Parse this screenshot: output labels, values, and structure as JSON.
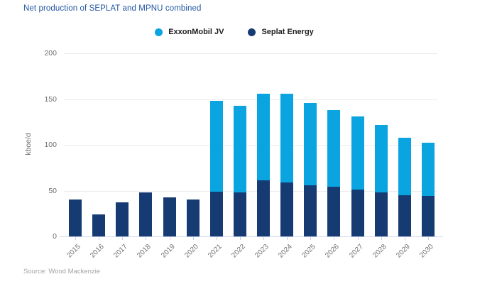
{
  "title": "Net production of SEPLAT and MPNU combined",
  "source": "Source: Wood Mackenzie",
  "colors": {
    "exxonmobil_jv": "#0aa5e0",
    "seplat_energy": "#163a72",
    "title_text": "#2456a3",
    "axis_text": "#6e6e6e",
    "gridline": "#ebebeb"
  },
  "legend": {
    "items": [
      {
        "label": "ExxonMobil JV",
        "color": "#0aa5e0"
      },
      {
        "label": "Seplat Energy",
        "color": "#163a72"
      }
    ]
  },
  "chart_data": {
    "type": "bar",
    "stacked": true,
    "title": "Net production of SEPLAT and MPNU combined",
    "categories": [
      "2015",
      "2016",
      "2017",
      "2018",
      "2019",
      "2020",
      "2021",
      "2022",
      "2023",
      "2024",
      "2025",
      "2026",
      "2027",
      "2028",
      "2029",
      "2030"
    ],
    "series": [
      {
        "name": "Seplat Energy",
        "color": "#163a72",
        "values": [
          40,
          24,
          37,
          48,
          43,
          40,
          49,
          48,
          61,
          59,
          56,
          54,
          51,
          48,
          45,
          44
        ]
      },
      {
        "name": "ExxonMobil JV",
        "color": "#0aa5e0",
        "values": [
          0,
          0,
          0,
          0,
          0,
          0,
          99,
          95,
          95,
          97,
          90,
          84,
          80,
          74,
          63,
          58
        ]
      }
    ],
    "totals": [
      40,
      24,
      37,
      48,
      43,
      40,
      148,
      143,
      156,
      156,
      146,
      138,
      131,
      122,
      108,
      102
    ],
    "xlabel": "",
    "ylabel": "kboe/d",
    "ylim": [
      0,
      200
    ],
    "yticks": [
      0,
      50,
      100,
      150,
      200
    ],
    "grid": true,
    "legend_position": "top"
  }
}
